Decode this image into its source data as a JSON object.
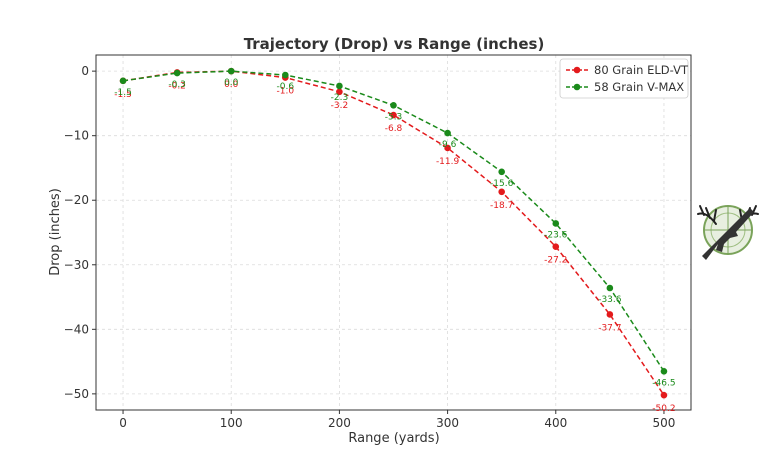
{
  "chart_data": {
    "type": "line",
    "title": "Trajectory (Drop) vs Range (inches)",
    "xlabel": "Range (yards)",
    "ylabel": "Drop (inches)",
    "xlim": [
      -25,
      525
    ],
    "ylim": [
      -52.5,
      2.5
    ],
    "xticks": [
      0,
      100,
      200,
      300,
      400,
      500
    ],
    "yticks": [
      0,
      -10,
      -20,
      -30,
      -40,
      -50
    ],
    "ytick_labels": [
      "0",
      "−10",
      "−20",
      "−30",
      "−40",
      "−50"
    ],
    "grid": true,
    "legend_position": "top-right",
    "series": [
      {
        "name": "80 Grain ELD-VT",
        "color": "#e31a1c",
        "line_style": "dashed",
        "x": [
          0,
          50,
          100,
          150,
          200,
          250,
          300,
          350,
          400,
          450,
          500
        ],
        "y": [
          -1.5,
          -0.2,
          0.0,
          -1.0,
          -3.2,
          -6.8,
          -11.9,
          -18.7,
          -27.2,
          -37.7,
          -50.2
        ],
        "labels": [
          "-1.5",
          "-0.2",
          "0.0",
          "-1.0",
          "-3.2",
          "-6.8",
          "-11.9",
          "-18.7",
          "-27.2",
          "-37.7",
          "-50.2"
        ]
      },
      {
        "name": "58 Grain V-MAX",
        "color": "#1a8a1a",
        "line_style": "dashed",
        "x": [
          0,
          50,
          100,
          150,
          200,
          250,
          300,
          350,
          400,
          450,
          500
        ],
        "y": [
          -1.5,
          -0.3,
          0.0,
          -0.6,
          -2.3,
          -5.3,
          -9.6,
          -15.6,
          -23.6,
          -33.6,
          -46.5
        ],
        "labels": [
          "-1.5",
          "-0.3",
          "0.0",
          "-0.6",
          "-2.3",
          "-5.3",
          "-9.6",
          "-15.6",
          "-23.6",
          "-33.6",
          "-46.5"
        ]
      }
    ]
  },
  "logo": {
    "icon": "deer-antler-rifle-logo-icon"
  }
}
